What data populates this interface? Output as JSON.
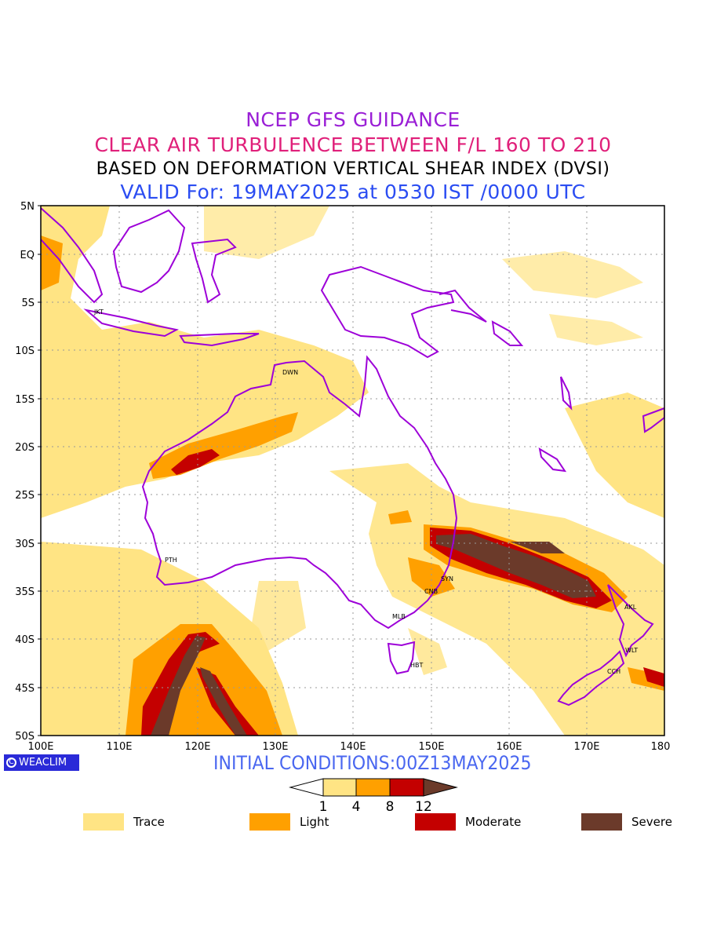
{
  "titles": {
    "line1": "NCEP GFS GUIDANCE",
    "line2": "CLEAR AIR TURBULENCE BETWEEN F/L 160 TO 210",
    "line3": "BASED ON DEFORMATION VERTICAL SHEAR INDEX (DVSI)",
    "line4": "VALID For: 19MAY2025 at 0530 IST /0000 UTC"
  },
  "colors": {
    "title1": "#9a1fd6",
    "title2": "#e0207a",
    "title3": "#000000",
    "title4": "#2b4df2",
    "coast": "#9d00d8",
    "trace": "#ffe484",
    "light": "#ffa000",
    "moderate": "#c40000",
    "severe": "#6b3a2a",
    "init": "#4a67f0"
  },
  "map": {
    "lat_labels": [
      "5N",
      "EQ",
      "5S",
      "10S",
      "15S",
      "20S",
      "25S",
      "30S",
      "35S",
      "40S",
      "45S",
      "50S"
    ],
    "lon_labels": [
      "100E",
      "110E",
      "120E",
      "130E",
      "140E",
      "150E",
      "160E",
      "170E",
      "180"
    ],
    "cities": [
      {
        "code": "JKT",
        "lon": 106.8,
        "lat": -6.2
      },
      {
        "code": "DWN",
        "lon": 130.8,
        "lat": -12.4
      },
      {
        "code": "PTH",
        "lon": 115.9,
        "lat": -31.9
      },
      {
        "code": "SYN",
        "lon": 151.2,
        "lat": -33.9
      },
      {
        "code": "CNB",
        "lon": 149.1,
        "lat": -35.3
      },
      {
        "code": "MLB",
        "lon": 144.9,
        "lat": -37.8
      },
      {
        "code": "HBT",
        "lon": 147.3,
        "lat": -42.9
      },
      {
        "code": "AKL",
        "lon": 174.8,
        "lat": -36.8
      },
      {
        "code": "WLT",
        "lon": 174.8,
        "lat": -41.3
      },
      {
        "code": "CCH",
        "lon": 172.6,
        "lat": -43.5
      }
    ]
  },
  "init_conditions": "INITIAL CONDITIONS:00Z13MAY2025",
  "badge": {
    "symbol": "C",
    "text": "WEACLIM"
  },
  "colorbar": {
    "ticks": [
      "1",
      "4",
      "8",
      "12"
    ]
  },
  "legend": [
    {
      "name": "Trace",
      "color": "#ffe484"
    },
    {
      "name": "Light",
      "color": "#ffa000"
    },
    {
      "name": "Moderate",
      "color": "#c40000"
    },
    {
      "name": "Severe",
      "color": "#6b3a2a"
    }
  ]
}
